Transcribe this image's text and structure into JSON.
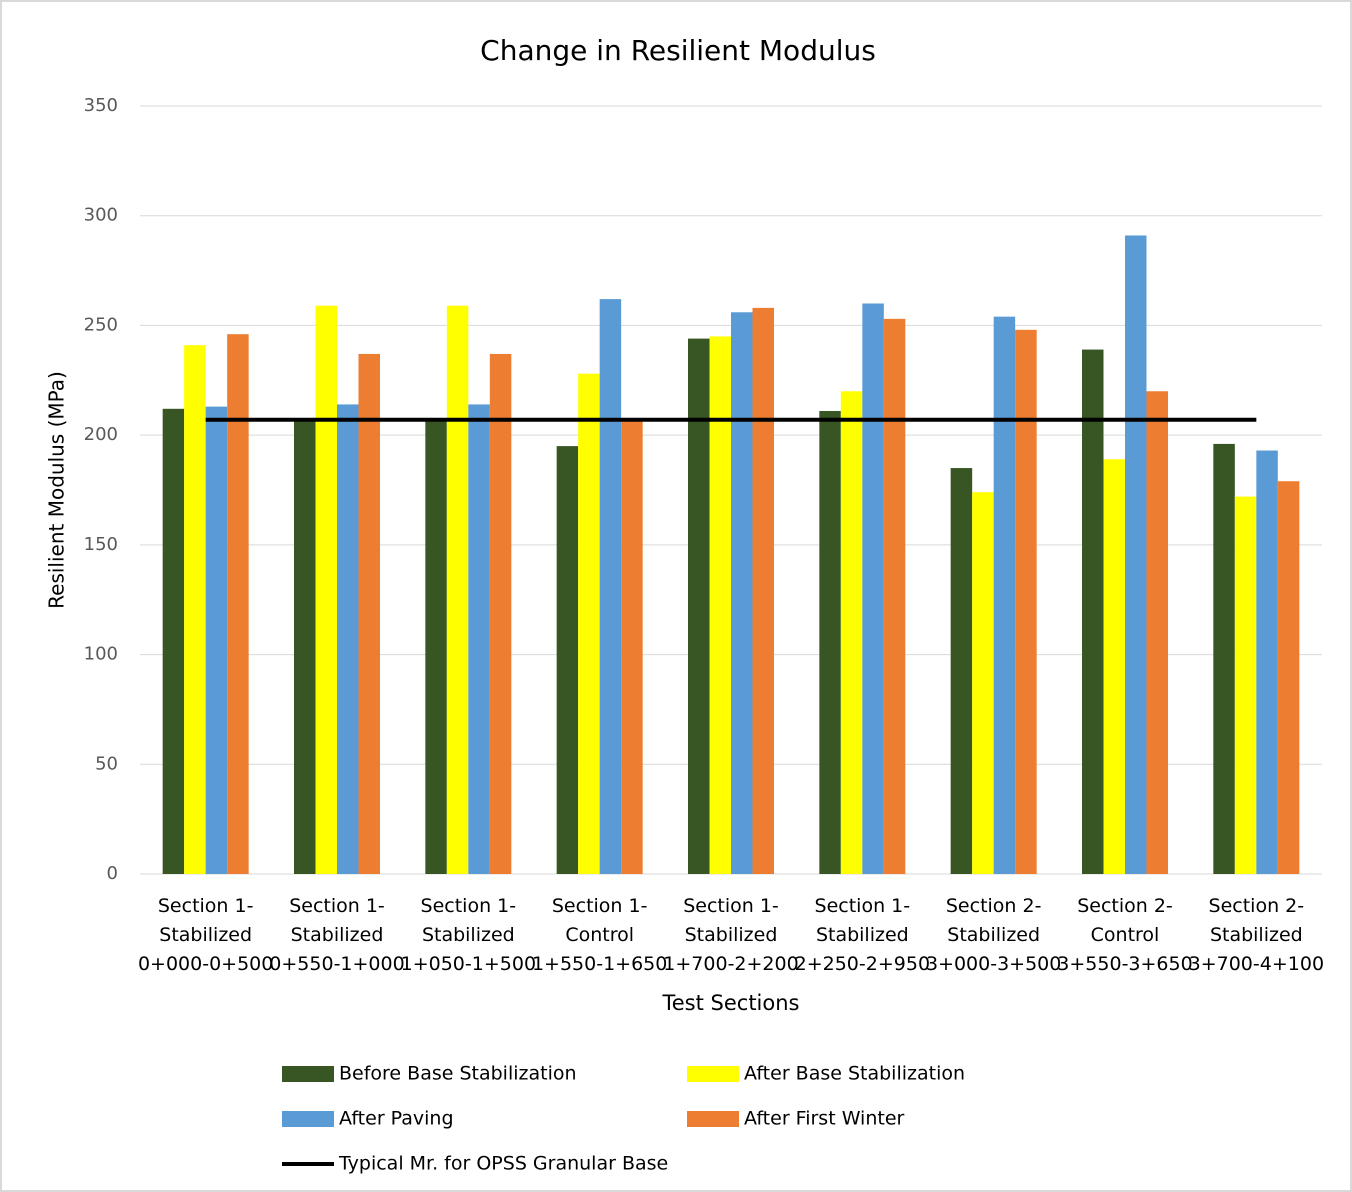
{
  "chart_data": {
    "type": "bar",
    "title": "Change in Resilient Modulus",
    "x_label": "Test Sections",
    "y_label": "Resilient Modulus (MPa)",
    "categories": [
      "Section 1-\nStabilized\n0+000-0+500",
      "Section 1-\nStabilized\n0+550-1+000",
      "Section 1-\nStabilized\n1+050-1+500",
      "Section 1-\nControl\n1+550-1+650",
      "Section 1-\nStabilized\n1+700-2+200",
      "Section 1-\nStabilized\n2+250-2+950",
      "Section 2-\nStabilized\n3+000-3+500",
      "Section 2-\nControl\n3+550-3+650",
      "Section 2-\nStabilized\n3+700-4+100"
    ],
    "series": [
      {
        "name": "Before Base Stabilization",
        "color": "#375623",
        "values": [
          212,
          207,
          207,
          195,
          244,
          211,
          185,
          239,
          196
        ]
      },
      {
        "name": "After Base Stabilization",
        "color": "#ffff00",
        "values": [
          241,
          259,
          259,
          228,
          245,
          220,
          174,
          189,
          172
        ]
      },
      {
        "name": "After Paving",
        "color": "#5b9bd5",
        "values": [
          213,
          214,
          214,
          262,
          256,
          260,
          254,
          291,
          193
        ]
      },
      {
        "name": "After First Winter",
        "color": "#ed7d31",
        "values": [
          246,
          237,
          237,
          207,
          258,
          253,
          248,
          220,
          179
        ]
      },
      {
        "name": "Typical Mr. for OPSS Granular Base",
        "color": "#000000",
        "type": "line",
        "values": [
          207,
          207,
          207,
          207,
          207,
          207,
          207,
          207,
          207
        ]
      }
    ],
    "ylim": [
      0,
      350
    ],
    "yticks": [
      0,
      50,
      100,
      150,
      200,
      250,
      300,
      350
    ],
    "grid": true,
    "legend": "bottom"
  }
}
